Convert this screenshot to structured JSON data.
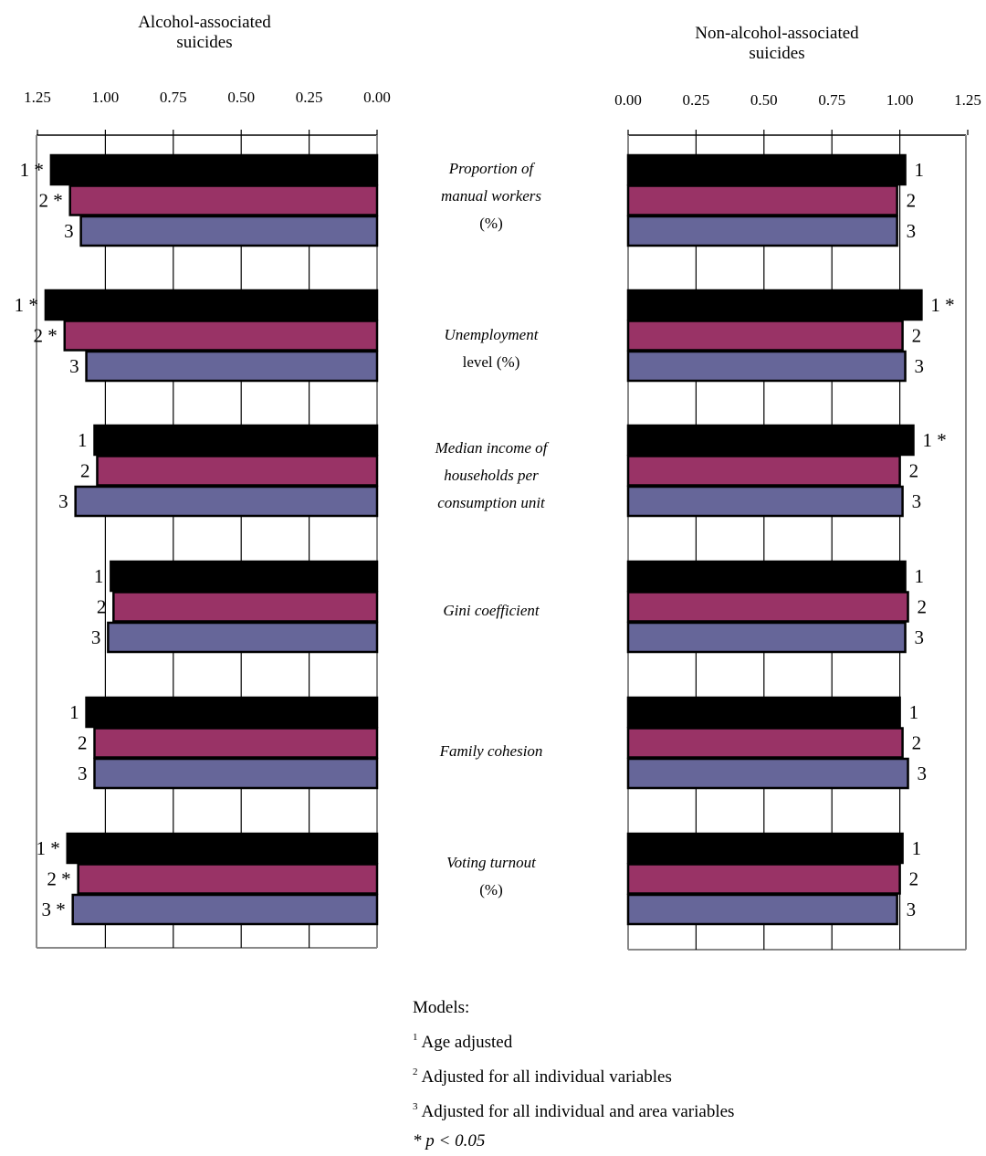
{
  "chart_data": [
    {
      "type": "bar",
      "orientation": "horizontal",
      "direction": "reversed",
      "title_lines": [
        "Alcohol-associated",
        "suicides"
      ],
      "xlim": [
        0,
        1.25
      ],
      "xticks": [
        "1.25",
        "1.00",
        "0.75",
        "0.50",
        "0.25",
        "0.00"
      ],
      "tick_values": [
        1.25,
        1.0,
        0.75,
        0.5,
        0.25,
        0.0
      ],
      "grid": true,
      "categories": [
        "Proportion of manual workers (%)",
        "Unemployment level (%)",
        "Median income of households per consumption unit",
        "Gini coefficient",
        "Family cohesion",
        "Voting turnout (%)"
      ],
      "series": [
        {
          "name": "1",
          "values": [
            1.2,
            1.22,
            1.04,
            0.98,
            1.07,
            1.14
          ]
        },
        {
          "name": "2",
          "values": [
            1.13,
            1.15,
            1.03,
            0.97,
            1.04,
            1.1
          ]
        },
        {
          "name": "3",
          "values": [
            1.09,
            1.07,
            1.11,
            0.99,
            1.04,
            1.12
          ]
        }
      ],
      "bar_labels": [
        [
          "1 *",
          "2 *",
          "3"
        ],
        [
          "1 *",
          "2 *",
          "3"
        ],
        [
          "1",
          "2",
          "3"
        ],
        [
          "1",
          "2",
          "3"
        ],
        [
          "1",
          "2",
          "3"
        ],
        [
          "1 *",
          "2 *",
          "3 *"
        ]
      ]
    },
    {
      "type": "bar",
      "orientation": "horizontal",
      "title_lines": [
        "Non-alcohol-associated",
        "suicides"
      ],
      "xlim": [
        0,
        1.25
      ],
      "xticks": [
        "0.00",
        "0.25",
        "0.50",
        "0.75",
        "1.00",
        "1.25"
      ],
      "tick_values": [
        0.0,
        0.25,
        0.5,
        0.75,
        1.0,
        1.25
      ],
      "grid": true,
      "categories": [
        "Proportion of manual workers (%)",
        "Unemployment level (%)",
        "Median income of households per consumption unit",
        "Gini coefficient",
        "Family cohesion",
        "Voting turnout (%)"
      ],
      "series": [
        {
          "name": "1",
          "values": [
            1.02,
            1.08,
            1.05,
            1.02,
            1.0,
            1.01
          ]
        },
        {
          "name": "2",
          "values": [
            0.99,
            1.01,
            1.0,
            1.03,
            1.01,
            1.0
          ]
        },
        {
          "name": "3",
          "values": [
            0.99,
            1.02,
            1.01,
            1.02,
            1.03,
            0.99
          ]
        }
      ],
      "bar_labels": [
        [
          "1",
          "2",
          "3"
        ],
        [
          "1 *",
          "2",
          "3"
        ],
        [
          "1 *",
          "2",
          "3"
        ],
        [
          "1",
          "2",
          "3"
        ],
        [
          "1",
          "2",
          "3"
        ],
        [
          "1",
          "2",
          "3"
        ]
      ]
    }
  ],
  "series_colors": [
    "#000000",
    "#993366",
    "#666699"
  ],
  "category_labels": [
    {
      "lines": [
        "Proportion of",
        "manual workers"
      ],
      "suffix": "(%)"
    },
    {
      "lines": [
        "Unemployment"
      ],
      "suffix": "level (%)"
    },
    {
      "lines": [
        "Median income of",
        "households per",
        "consumption unit"
      ],
      "suffix": ""
    },
    {
      "lines": [
        "Gini coefficient"
      ],
      "suffix": ""
    },
    {
      "lines": [
        "Family cohesion"
      ],
      "suffix": ""
    },
    {
      "lines": [
        "Voting turnout"
      ],
      "suffix": "(%)"
    }
  ],
  "legend": {
    "heading": "Models:",
    "items": [
      {
        "sup": "1",
        "text": "Age adjusted"
      },
      {
        "sup": "2",
        "text": "Adjusted for all individual variables"
      },
      {
        "sup": "3",
        "text": "Adjusted for all individual and area variables"
      }
    ],
    "pnote": "* p < 0.05"
  }
}
